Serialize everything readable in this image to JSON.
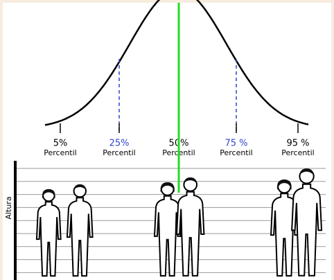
{
  "labels": [
    {
      "value": "5%",
      "caption": "Percentil"
    },
    {
      "value": "25%",
      "caption": "Percentil"
    },
    {
      "value": "50%",
      "caption": "Percentil"
    },
    {
      "value": "75 %",
      "caption": "Percentil"
    },
    {
      "value": "95 %",
      "caption": "Percentil"
    }
  ],
  "axis_label": "Altura"
}
